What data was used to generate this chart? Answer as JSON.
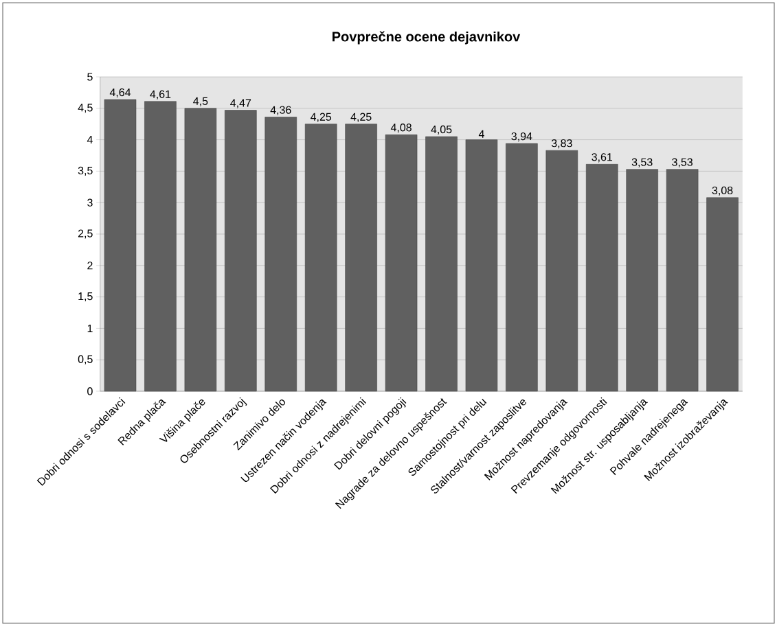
{
  "chart_data": {
    "type": "bar",
    "title": "Povprečne ocene dejavnikov",
    "categories": [
      "Dobri odnosi s sodelavci",
      "Redna plača",
      "Višina plače",
      "Osebnostni razvoj",
      "Zanimivo delo",
      "Ustrezen način vodenja",
      "Dobri odnosi z nadrejenimi",
      "Dobri delovni pogoji",
      "Nagrade za delovno uspešnost",
      "Samostojnost pri delu",
      "Stalnost/varnost zaposlitve",
      "Možnost napredovanja",
      "Prevzemanje odgovornosti",
      "Možnost str. usposabljanja",
      "Pohvale nadrejenega",
      "Možnost izobraževanja"
    ],
    "values": [
      4.64,
      4.61,
      4.5,
      4.47,
      4.36,
      4.25,
      4.25,
      4.08,
      4.05,
      4,
      3.94,
      3.83,
      3.61,
      3.53,
      3.53,
      3.08
    ],
    "value_labels": [
      "4,64",
      "4,61",
      "4,5",
      "4,47",
      "4,36",
      "4,25",
      "4,25",
      "4,08",
      "4,05",
      "4",
      "3,94",
      "3,83",
      "3,61",
      "3,53",
      "3,53",
      "3,08"
    ],
    "color": "#606060",
    "ylim": [
      0,
      5
    ],
    "yticks": [
      0,
      {
        "value": 0.5,
        "label": "0,5"
      },
      1,
      {
        "value": 1.5,
        "label": "1,5"
      },
      2,
      {
        "value": 2.5,
        "label": "2,5"
      },
      3,
      {
        "value": 3.5,
        "label": "3,5"
      },
      4,
      {
        "value": 4.5,
        "label": "4,5"
      },
      5
    ],
    "grid": "y"
  }
}
